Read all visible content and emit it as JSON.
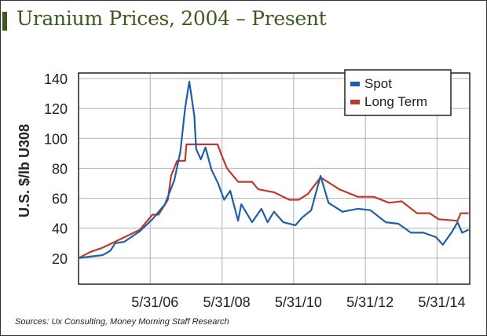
{
  "title": "Uranium Prices, 2004 – Present",
  "source": "Sources: Ux Consulting, Money Morning Staff Research",
  "chart_data": {
    "type": "line",
    "title": "Uranium Prices, 2004 – Present",
    "xlabel": "",
    "ylabel": "U.S. $/lb U308",
    "xlim": [
      2004.41,
      2015.32
    ],
    "ylim": [
      2.6,
      143.7
    ],
    "grid": true,
    "legend_position": "top-right",
    "yticks": [
      20,
      40,
      60,
      80,
      100,
      120,
      140
    ],
    "xticks": [
      {
        "value": 2006.41,
        "label": "5/31/06"
      },
      {
        "value": 2008.41,
        "label": "5/31/08"
      },
      {
        "value": 2010.41,
        "label": "5/31/10"
      },
      {
        "value": 2012.41,
        "label": "5/31/12"
      },
      {
        "value": 2014.41,
        "label": "5/31/14"
      }
    ],
    "series": [
      {
        "name": "Spot",
        "color": "#1f5fa8",
        "x": [
          2004.41,
          2004.73,
          2005.08,
          2005.3,
          2005.43,
          2005.69,
          2006.12,
          2006.47,
          2006.82,
          2007.08,
          2007.25,
          2007.38,
          2007.5,
          2007.64,
          2007.69,
          2007.82,
          2007.95,
          2008.12,
          2008.3,
          2008.47,
          2008.64,
          2008.86,
          2008.95,
          2009.25,
          2009.51,
          2009.68,
          2009.86,
          2010.12,
          2010.46,
          2010.64,
          2010.9,
          2011.16,
          2011.38,
          2011.51,
          2011.77,
          2012.2,
          2012.55,
          2012.98,
          2013.33,
          2013.68,
          2014.03,
          2014.38,
          2014.57,
          2014.81,
          2014.98,
          2015.11,
          2015.29
        ],
        "values": [
          20,
          21,
          22,
          25,
          30,
          31,
          38,
          46,
          56,
          72,
          91,
          120,
          138,
          115,
          93,
          86,
          94,
          79,
          70,
          59,
          65,
          45,
          56,
          44,
          53,
          44,
          51,
          44,
          42,
          47,
          52,
          75,
          57,
          55,
          51,
          53,
          52,
          44,
          43,
          37,
          37,
          34,
          29,
          37,
          44,
          37,
          39
        ]
      },
      {
        "name": "Long Term",
        "color": "#c0392b",
        "x": [
          2004.41,
          2004.73,
          2005.08,
          2005.43,
          2006.12,
          2006.47,
          2006.64,
          2006.9,
          2006.99,
          2007.16,
          2007.38,
          2007.42,
          2008.29,
          2008.38,
          2008.55,
          2008.86,
          2009.25,
          2009.42,
          2009.86,
          2010.29,
          2010.55,
          2010.81,
          2011.16,
          2011.42,
          2011.68,
          2012.2,
          2012.64,
          2013.07,
          2013.42,
          2013.85,
          2014.2,
          2014.46,
          2014.98,
          2015.07,
          2015.29
        ],
        "values": [
          20,
          24,
          27,
          31,
          39,
          49,
          49,
          59,
          75,
          85,
          85,
          96,
          96,
          90,
          80,
          71,
          71,
          66,
          64,
          59,
          59,
          63,
          74,
          70,
          66,
          61,
          61,
          57,
          58,
          50,
          50,
          46,
          45,
          50,
          50
        ]
      }
    ]
  }
}
